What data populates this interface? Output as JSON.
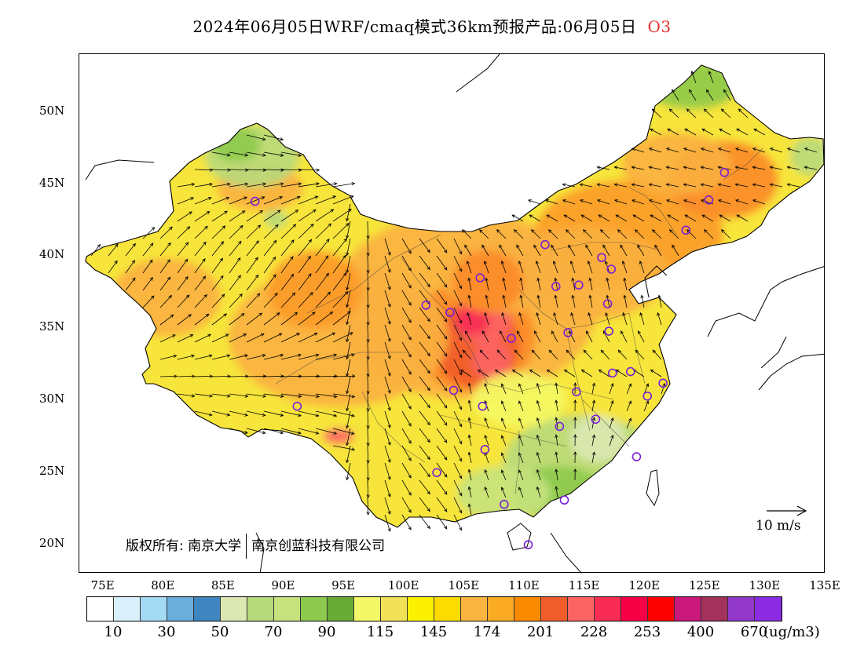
{
  "title": {
    "text": "2024年06月05日WRF/cmaq模式36km预报产品:06月05日",
    "species": "O3",
    "species_color": "#e0302a"
  },
  "map": {
    "lat_labels": [
      "50N",
      "45N",
      "40N",
      "35N",
      "30N",
      "25N",
      "20N"
    ],
    "lon_labels": [
      "75E",
      "80E",
      "85E",
      "90E",
      "95E",
      "100E",
      "105E",
      "110E",
      "115E",
      "120E",
      "125E",
      "130E",
      "135E"
    ],
    "lon_range": [
      73,
      135
    ],
    "lat_range": [
      18,
      54
    ],
    "copyright_left": "版权所有: 南京大学",
    "copyright_right": "南京创蓝科技有限公司",
    "wind_reference": "10 m/s"
  },
  "stations": [
    [
      87.6,
      43.8
    ],
    [
      91.1,
      29.6
    ],
    [
      101.8,
      36.6
    ],
    [
      103.8,
      36.1
    ],
    [
      106.3,
      38.5
    ],
    [
      111.7,
      40.8
    ],
    [
      112.6,
      37.9
    ],
    [
      114.5,
      38.0
    ],
    [
      116.4,
      39.9
    ],
    [
      117.2,
      39.1
    ],
    [
      116.9,
      36.7
    ],
    [
      117.0,
      34.8
    ],
    [
      113.6,
      34.7
    ],
    [
      108.9,
      34.3
    ],
    [
      104.1,
      30.7
    ],
    [
      106.5,
      29.6
    ],
    [
      106.7,
      26.6
    ],
    [
      102.7,
      25.0
    ],
    [
      108.3,
      22.8
    ],
    [
      113.3,
      23.1
    ],
    [
      114.3,
      30.6
    ],
    [
      112.9,
      28.2
    ],
    [
      115.9,
      28.7
    ],
    [
      117.3,
      31.9
    ],
    [
      118.8,
      32.0
    ],
    [
      120.2,
      30.3
    ],
    [
      121.5,
      31.2
    ],
    [
      119.3,
      26.1
    ],
    [
      110.3,
      20.0
    ],
    [
      123.4,
      41.8
    ],
    [
      125.3,
      43.9
    ],
    [
      126.6,
      45.8
    ]
  ],
  "colorbar": {
    "colors": [
      "#ffffff",
      "#d9f0fb",
      "#a4daf4",
      "#6aaedc",
      "#3f86c1",
      "#dbe8b4",
      "#b7d97c",
      "#c5e27e",
      "#8cc94d",
      "#6aaa37",
      "#f3f866",
      "#f2e257",
      "#fcf100",
      "#fcdc00",
      "#f9b540",
      "#fbaa24",
      "#fb8a00",
      "#f15c2c",
      "#fc6464",
      "#f82c54",
      "#f80045",
      "#fd0000",
      "#c9177b",
      "#a3315b",
      "#9138c8",
      "#8b2ce3"
    ],
    "labels": [
      "10",
      "30",
      "50",
      "70",
      "90",
      "115",
      "145",
      "174",
      "201",
      "228",
      "253",
      "400",
      "670"
    ],
    "unit": "(ug/m3)"
  }
}
